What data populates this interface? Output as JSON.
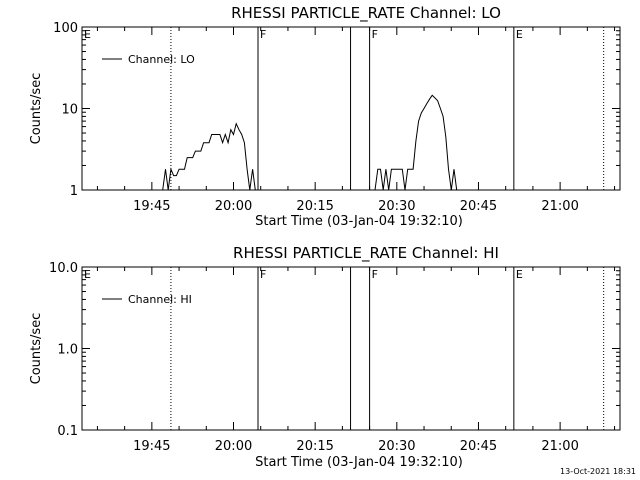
{
  "chart_data": [
    {
      "type": "line",
      "title": "RHESSI PARTICLE_RATE Channel: LO",
      "xlabel": "Start Time (03-Jan-04 19:32:10)",
      "ylabel": "Counts/sec",
      "yscale": "log",
      "ylim": [
        1,
        100
      ],
      "yticks": [
        "1",
        "10",
        "100"
      ],
      "xlim": [
        "19:32:10",
        "21:11:00"
      ],
      "xticks": [
        "19:45",
        "20:00",
        "20:15",
        "20:30",
        "20:45",
        "21:00"
      ],
      "legend": {
        "label": "Channel: LO",
        "placement": "top-left"
      },
      "markers": [
        {
          "label": "E",
          "time": "19:32:10",
          "style": "none"
        },
        {
          "label": "",
          "time": "19:48:30",
          "style": "dotted"
        },
        {
          "label": "F",
          "time": "20:04:30",
          "style": "solid"
        },
        {
          "label": "",
          "time": "20:21:30",
          "style": "solid"
        },
        {
          "label": "F",
          "time": "20:25:00",
          "style": "solid"
        },
        {
          "label": "E",
          "time": "20:51:30",
          "style": "solid"
        },
        {
          "label": "",
          "time": "21:08:00",
          "style": "dotted"
        }
      ],
      "series": [
        {
          "name": "Channel: LO",
          "segments": [
            [
              [
                "19:47:00",
                1.0
              ],
              [
                "19:47:30",
                1.8
              ],
              [
                "19:48:00",
                1.0
              ],
              [
                "19:48:30",
                1.8
              ],
              [
                "19:49:00",
                1.5
              ],
              [
                "19:49:30",
                1.5
              ],
              [
                "19:50:00",
                1.8
              ],
              [
                "19:51:00",
                1.8
              ],
              [
                "19:51:30",
                2.5
              ],
              [
                "19:52:30",
                2.5
              ],
              [
                "19:53:00",
                3.0
              ],
              [
                "19:54:00",
                3.0
              ],
              [
                "19:54:30",
                3.8
              ],
              [
                "19:55:30",
                3.8
              ],
              [
                "19:56:00",
                4.8
              ],
              [
                "19:57:30",
                4.8
              ],
              [
                "19:58:00",
                3.8
              ],
              [
                "19:58:30",
                4.8
              ],
              [
                "19:59:00",
                3.8
              ],
              [
                "19:59:30",
                5.5
              ],
              [
                "20:00:00",
                4.8
              ],
              [
                "20:00:30",
                6.5
              ],
              [
                "20:01:00",
                5.5
              ],
              [
                "20:01:30",
                4.8
              ],
              [
                "20:02:00",
                3.8
              ],
              [
                "20:02:30",
                1.8
              ],
              [
                "20:03:00",
                1.0
              ],
              [
                "20:03:30",
                1.8
              ],
              [
                "20:04:00",
                1.0
              ]
            ],
            [
              [
                "20:26:00",
                1.0
              ],
              [
                "20:26:30",
                1.8
              ],
              [
                "20:27:00",
                1.8
              ],
              [
                "20:27:30",
                1.0
              ],
              [
                "20:28:00",
                1.8
              ],
              [
                "20:28:30",
                1.0
              ],
              [
                "20:29:00",
                1.8
              ],
              [
                "20:31:00",
                1.8
              ],
              [
                "20:31:30",
                1.0
              ],
              [
                "20:32:00",
                1.8
              ],
              [
                "20:33:00",
                1.8
              ],
              [
                "20:33:30",
                4.0
              ],
              [
                "20:34:00",
                7.0
              ],
              [
                "20:34:30",
                8.8
              ],
              [
                "20:35:00",
                10.0
              ],
              [
                "20:35:30",
                11.5
              ],
              [
                "20:36:00",
                13.0
              ],
              [
                "20:36:30",
                14.5
              ],
              [
                "20:37:00",
                13.5
              ],
              [
                "20:37:30",
                12.5
              ],
              [
                "20:38:00",
                10.0
              ],
              [
                "20:38:30",
                8.0
              ],
              [
                "20:39:00",
                4.5
              ],
              [
                "20:39:30",
                1.8
              ],
              [
                "20:40:00",
                1.0
              ],
              [
                "20:40:30",
                1.8
              ],
              [
                "20:41:00",
                1.0
              ]
            ]
          ]
        }
      ]
    },
    {
      "type": "line",
      "title": "RHESSI PARTICLE_RATE Channel: HI",
      "xlabel": "Start Time (03-Jan-04 19:32:10)",
      "ylabel": "Counts/sec",
      "yscale": "log",
      "ylim": [
        0.1,
        10.0
      ],
      "yticks": [
        "0.1",
        "1.0",
        "10.0"
      ],
      "xlim": [
        "19:32:10",
        "21:11:00"
      ],
      "xticks": [
        "19:45",
        "20:00",
        "20:15",
        "20:30",
        "20:45",
        "21:00"
      ],
      "legend": {
        "label": "Channel: HI",
        "placement": "top-left"
      },
      "markers": [
        {
          "label": "E",
          "time": "19:32:10",
          "style": "none"
        },
        {
          "label": "",
          "time": "19:48:30",
          "style": "dotted"
        },
        {
          "label": "F",
          "time": "20:04:30",
          "style": "solid"
        },
        {
          "label": "",
          "time": "20:21:30",
          "style": "solid"
        },
        {
          "label": "F",
          "time": "20:25:00",
          "style": "solid"
        },
        {
          "label": "E",
          "time": "20:51:30",
          "style": "solid"
        },
        {
          "label": "",
          "time": "21:08:00",
          "style": "dotted"
        }
      ],
      "series": [
        {
          "name": "Channel: HI",
          "segments": []
        }
      ]
    }
  ],
  "footer": {
    "timestamp": "13-Oct-2021 18:31"
  },
  "colors": {
    "foreground": "#000000",
    "background": "#ffffff"
  }
}
